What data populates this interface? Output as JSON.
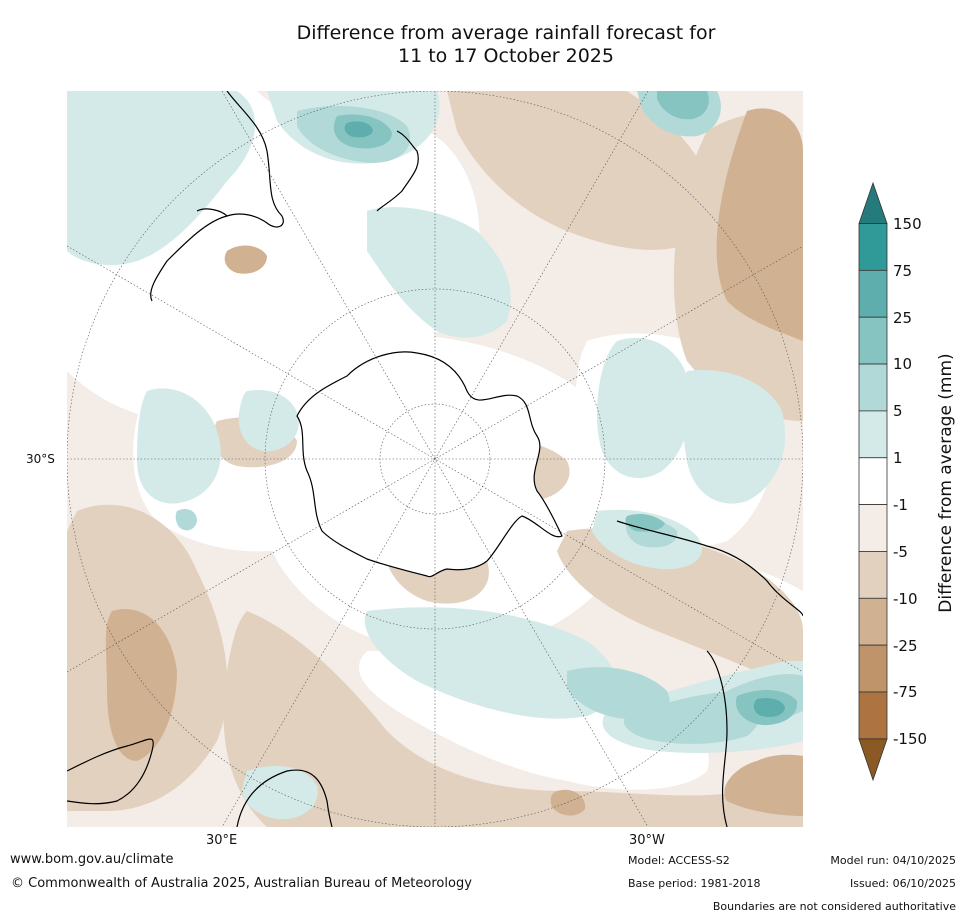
{
  "title": {
    "line1": "Difference from average rainfall forecast for",
    "line2": "11 to 17 October 2025"
  },
  "map": {
    "projection": "south polar stereographic",
    "lat_labels": [
      "30°S"
    ],
    "lon_labels": [
      "30°E",
      "30°W"
    ]
  },
  "colorbar": {
    "title": "Difference from average (mm)",
    "ticks": [
      "150",
      "75",
      "25",
      "10",
      "5",
      "1",
      "-1",
      "-5",
      "-10",
      "-25",
      "-75",
      "-150"
    ],
    "colors": [
      "#2f9a98",
      "#5daeac",
      "#86c4c2",
      "#b1d9d7",
      "#d4eae8",
      "#ffffff",
      "#f4ece6",
      "#e3d1c0",
      "#d0b293",
      "#bf946b",
      "#ad7442"
    ],
    "over_color": "#257b7b",
    "under_color": "#8b5a24"
  },
  "footer": {
    "url": "www.bom.gov.au/climate",
    "copyright": "© Commonwealth of Australia 2025, Australian Bureau of Meteorology",
    "model": "Model: ACCESS-S2",
    "base_period": "Base period: 1981-2018",
    "model_run": "Model run: 04/10/2025",
    "issued": "Issued: 06/10/2025",
    "disclaimer": "Boundaries are not considered authoritative"
  }
}
